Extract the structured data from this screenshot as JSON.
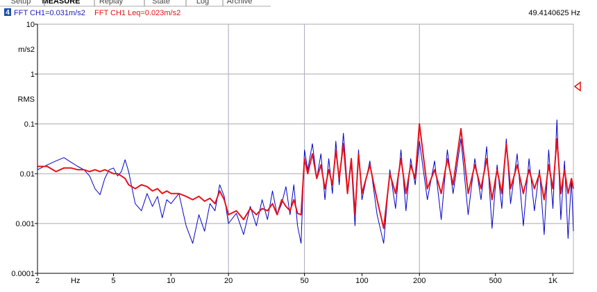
{
  "tabs": [
    "Setup",
    "MEASURE",
    "Replay",
    "State",
    "Log",
    "Archive"
  ],
  "chart_data": {
    "type": "line",
    "badge": "4",
    "readouts": [
      "FFT CH1=0.031m/s2",
      "FFT CH1 Leq=0.023m/s2"
    ],
    "cursor_readout": "49.4140625 Hz",
    "x_unit": "Hz",
    "y_units": [
      "m/s2",
      "RMS"
    ],
    "xscale": "log",
    "yscale": "log",
    "xlim": [
      2,
      1280
    ],
    "ylim": [
      0.0001,
      10
    ],
    "xticks": [
      2,
      5,
      10,
      20,
      50,
      100,
      200,
      500,
      {
        "value": 1000,
        "label": "1K"
      }
    ],
    "yticks": [
      10,
      1,
      0.1,
      0.01,
      0.001,
      0.0001
    ],
    "xgrid": [
      20,
      50,
      200
    ],
    "grid": true,
    "x": [
      2,
      2.25,
      2.5,
      2.75,
      3,
      3.25,
      3.5,
      3.75,
      4,
      4.25,
      4.5,
      4.75,
      5,
      5.25,
      5.5,
      5.75,
      6,
      6.5,
      7,
      7.5,
      8,
      8.5,
      9,
      9.5,
      10,
      11,
      12,
      13,
      14,
      15,
      16,
      17,
      18,
      19,
      20,
      22,
      24,
      26,
      28,
      30,
      32,
      34,
      36,
      38,
      40,
      42,
      44,
      46,
      48,
      50,
      52,
      55,
      58,
      61,
      64,
      67,
      70,
      73,
      76,
      80,
      84,
      88,
      92,
      96,
      100,
      110,
      120,
      130,
      140,
      150,
      160,
      170,
      180,
      190,
      200,
      220,
      240,
      260,
      280,
      300,
      330,
      360,
      390,
      420,
      450,
      480,
      510,
      540,
      570,
      600,
      650,
      700,
      750,
      800,
      850,
      900,
      950,
      1000,
      1050,
      1100,
      1150,
      1200,
      1250,
      1280
    ],
    "series": [
      {
        "name": "FFT CH1",
        "color": "#0000c8",
        "width": 1,
        "values": [
          0.012,
          0.015,
          0.018,
          0.021,
          0.017,
          0.014,
          0.012,
          0.009,
          0.005,
          0.0038,
          0.008,
          0.012,
          0.013,
          0.009,
          0.011,
          0.019,
          0.011,
          0.0025,
          0.0018,
          0.004,
          0.0022,
          0.0035,
          0.0013,
          0.003,
          0.0025,
          0.004,
          0.0009,
          0.0004,
          0.0015,
          0.0007,
          0.0025,
          0.0018,
          0.006,
          0.0035,
          0.001,
          0.0016,
          0.0006,
          0.0022,
          0.0009,
          0.003,
          0.0012,
          0.0045,
          0.0015,
          0.0025,
          0.0055,
          0.0015,
          0.006,
          0.0009,
          0.0004,
          0.03,
          0.012,
          0.04,
          0.008,
          0.025,
          0.003,
          0.02,
          0.004,
          0.045,
          0.006,
          0.065,
          0.005,
          0.015,
          0.0009,
          0.03,
          0.003,
          0.018,
          0.0015,
          0.0004,
          0.012,
          0.002,
          0.03,
          0.0018,
          0.02,
          0.006,
          0.045,
          0.003,
          0.018,
          0.0012,
          0.03,
          0.004,
          0.05,
          0.0015,
          0.02,
          0.003,
          0.035,
          0.0008,
          0.015,
          0.002,
          0.05,
          0.0025,
          0.025,
          0.0009,
          0.02,
          0.0018,
          0.012,
          0.0006,
          0.03,
          0.002,
          0.12,
          0.0012,
          0.018,
          0.0005,
          0.008,
          0.0007
        ]
      },
      {
        "name": "FFT CH1 Leq",
        "color": "#e8101a",
        "width": 2,
        "values": [
          0.014,
          0.014,
          0.011,
          0.013,
          0.013,
          0.012,
          0.012,
          0.011,
          0.012,
          0.011,
          0.012,
          0.011,
          0.01,
          0.01,
          0.009,
          0.008,
          0.006,
          0.005,
          0.006,
          0.0055,
          0.0045,
          0.005,
          0.004,
          0.0045,
          0.004,
          0.004,
          0.0035,
          0.003,
          0.0035,
          0.0028,
          0.0032,
          0.0025,
          0.0045,
          0.003,
          0.0015,
          0.0018,
          0.0012,
          0.002,
          0.0015,
          0.002,
          0.0018,
          0.0025,
          0.0015,
          0.003,
          0.0022,
          0.0018,
          0.003,
          0.0016,
          0.0015,
          0.02,
          0.01,
          0.025,
          0.008,
          0.015,
          0.005,
          0.012,
          0.006,
          0.03,
          0.008,
          0.04,
          0.004,
          0.02,
          0.0015,
          0.025,
          0.004,
          0.015,
          0.003,
          0.0008,
          0.01,
          0.004,
          0.02,
          0.004,
          0.015,
          0.008,
          0.1,
          0.005,
          0.012,
          0.004,
          0.02,
          0.006,
          0.08,
          0.004,
          0.015,
          0.005,
          0.02,
          0.003,
          0.012,
          0.004,
          0.04,
          0.005,
          0.015,
          0.004,
          0.012,
          0.005,
          0.01,
          0.003,
          0.015,
          0.005,
          0.05,
          0.004,
          0.012,
          0.004,
          0.008,
          0.005
        ]
      }
    ]
  }
}
